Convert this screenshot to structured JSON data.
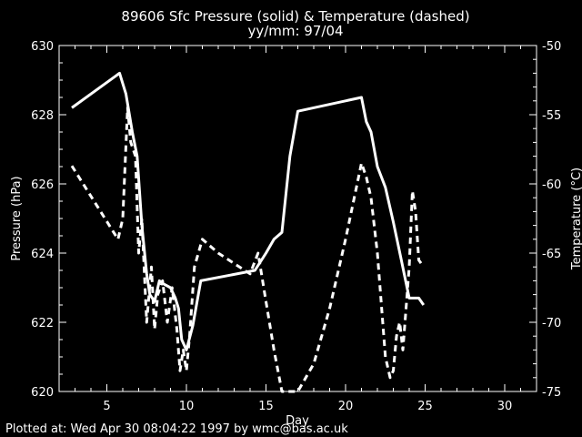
{
  "chart_data": {
    "type": "line",
    "title": "89606 Sfc Pressure (solid) & Temperature (dashed)",
    "subtitle": "yy/mm: 97/04",
    "xlabel": "Day",
    "ylabel_left": "Pressure (hPa)",
    "ylabel_right": "Temperature (°C)",
    "xlim": [
      2,
      32
    ],
    "ylim_left": [
      620,
      630
    ],
    "ylim_right": [
      -75,
      -50
    ],
    "x_ticks": [
      5,
      10,
      15,
      20,
      25,
      30
    ],
    "y_left_ticks": [
      620,
      622,
      624,
      626,
      628,
      630
    ],
    "y_right_ticks": [
      -75,
      -70,
      -65,
      -60,
      -55,
      -50
    ],
    "x_tick_labels": [
      "5",
      "10",
      "15",
      "20",
      "25",
      "30"
    ],
    "y_left_tick_labels": [
      "620",
      "622",
      "624",
      "626",
      "628",
      "630"
    ],
    "y_right_tick_labels": [
      "-75",
      "-70",
      "-65",
      "-60",
      "-55",
      "-50"
    ],
    "series": [
      {
        "style": "solid",
        "axis": "left",
        "x": [
          2.8,
          5.8,
          6.2,
          6.6,
          6.9,
          7.2,
          7.5,
          7.7,
          8.0,
          8.3,
          8.6,
          9.0,
          9.3,
          9.5,
          9.7,
          10.0,
          10.4,
          10.9,
          14.3,
          15.0,
          15.5,
          16.0,
          16.5,
          17.0,
          21.0,
          21.3,
          21.6,
          22.0,
          22.5,
          23.0,
          23.5,
          24.0,
          24.3,
          24.6,
          24.9
        ],
        "y": [
          628.2,
          629.2,
          628.6,
          627.5,
          626.8,
          624.8,
          623.4,
          622.8,
          622.6,
          623.2,
          623.1,
          623.0,
          622.7,
          622.4,
          621.5,
          621.2,
          621.9,
          623.2,
          623.5,
          624.0,
          624.4,
          624.6,
          626.8,
          628.1,
          628.5,
          627.8,
          627.5,
          626.5,
          625.9,
          624.9,
          623.8,
          622.7,
          622.7,
          622.7,
          622.5
        ]
      },
      {
        "style": "dashed",
        "axis": "right",
        "x": [
          2.8,
          5.7,
          6.0,
          6.3,
          6.5,
          6.8,
          7.0,
          7.2,
          7.5,
          7.8,
          8.0,
          8.2,
          8.5,
          8.8,
          9.1,
          9.4,
          9.6,
          9.8,
          10.0,
          10.2,
          10.5,
          11.0,
          12.0,
          14.0,
          14.5,
          15.0,
          15.5,
          16.0,
          16.5,
          17.0,
          18.0,
          19.0,
          20.0,
          21.0,
          21.3,
          21.6,
          22.0,
          22.5,
          22.8,
          23.0,
          23.2,
          23.4,
          23.6,
          23.8,
          24.0,
          24.2,
          24.4,
          24.6,
          24.9
        ],
        "y": [
          -58.7,
          -64.0,
          -62.5,
          -54.5,
          -57.0,
          -58.0,
          -65.0,
          -62.5,
          -70.0,
          -66.0,
          -70.5,
          -68.0,
          -67.0,
          -70.0,
          -67.5,
          -70.5,
          -73.5,
          -72.0,
          -73.5,
          -71.0,
          -66.0,
          -64.0,
          -65.0,
          -66.5,
          -65.0,
          -68.5,
          -72.0,
          -75.0,
          -75.0,
          -75.0,
          -73.0,
          -69.0,
          -64.0,
          -58.5,
          -59.5,
          -61.0,
          -65.0,
          -72.5,
          -74.0,
          -73.5,
          -71.0,
          -70.0,
          -72.0,
          -69.0,
          -66.0,
          -60.5,
          -62.0,
          -65.5,
          -66.0
        ]
      }
    ]
  },
  "footer": "Plotted at: Wed Apr 30 08:04:22 1997 by wmc@bas.ac.uk"
}
